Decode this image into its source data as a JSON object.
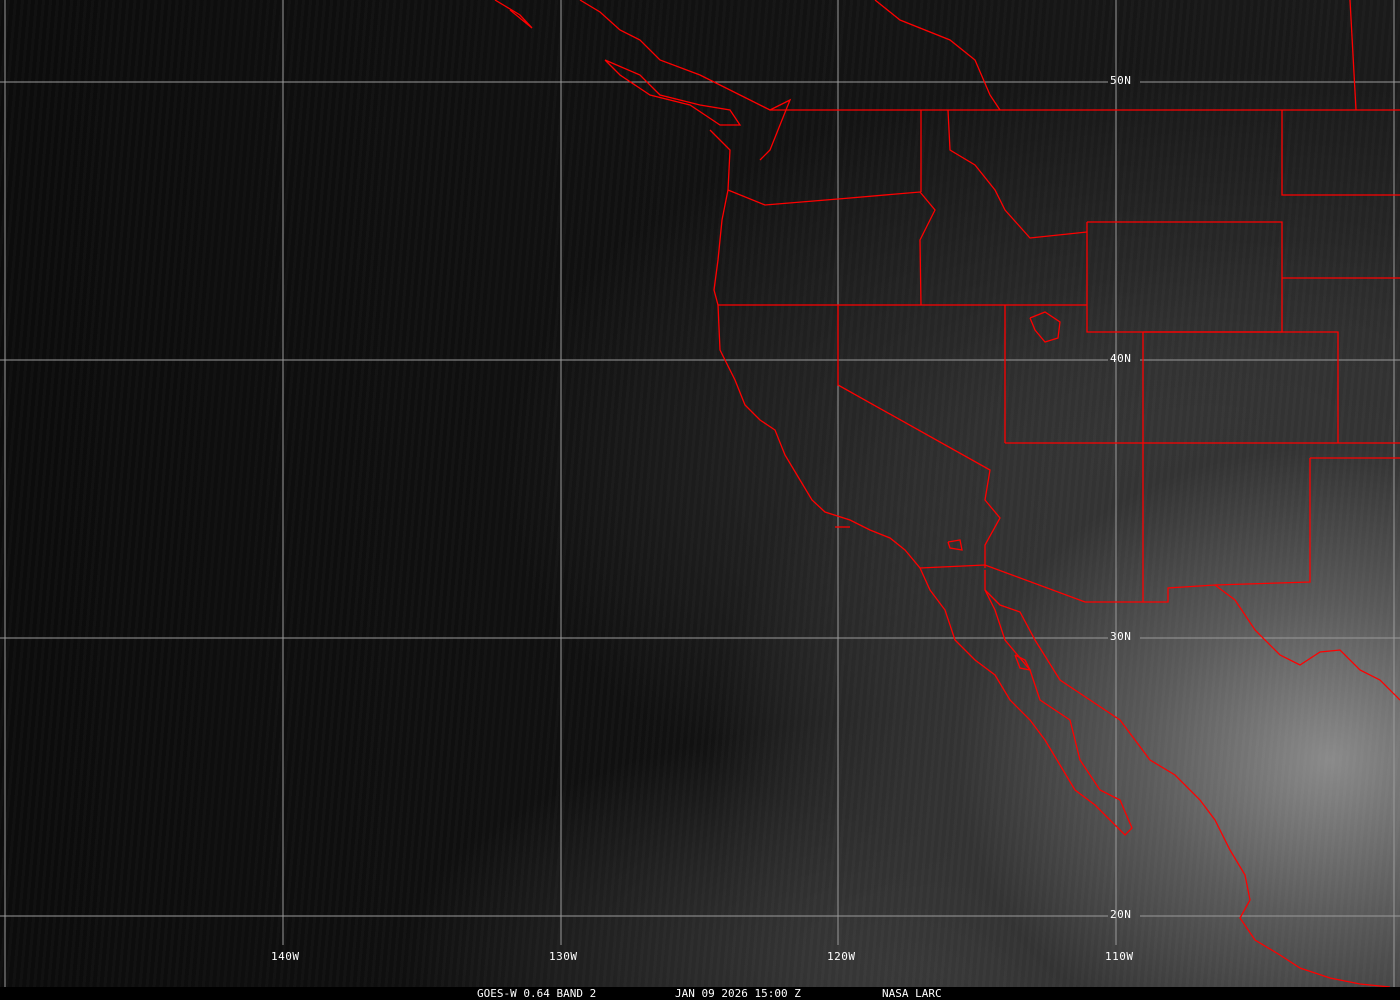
{
  "map": {
    "longitude_labels": [
      "140W",
      "130W",
      "120W",
      "110W"
    ],
    "latitude_labels": [
      "50N",
      "40N",
      "30N",
      "20N"
    ],
    "border_color": "#ff0000",
    "grid_color": "#9a9a9a"
  },
  "caption": {
    "product": "GOES-W 0.64 BAND 2",
    "datetime": "JAN 09 2026 15:00 Z",
    "source": "NASA LARC"
  }
}
